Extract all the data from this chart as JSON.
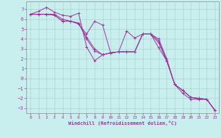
{
  "xlabel": "Windchill (Refroidissement éolien,°C)",
  "bg_color": "#c8eeee",
  "grid_color": "#b0d0d0",
  "line_color": "#993399",
  "xlim": [
    -0.5,
    23.5
  ],
  "ylim": [
    -3.5,
    7.8
  ],
  "yticks": [
    -3,
    -2,
    -1,
    0,
    1,
    2,
    3,
    4,
    5,
    6,
    7
  ],
  "xticks": [
    0,
    1,
    2,
    3,
    4,
    5,
    6,
    7,
    8,
    9,
    10,
    11,
    12,
    13,
    14,
    15,
    16,
    17,
    18,
    19,
    20,
    21,
    22,
    23
  ],
  "series": [
    [
      6.5,
      6.8,
      7.2,
      6.7,
      6.4,
      6.3,
      6.6,
      3.2,
      1.8,
      2.4,
      2.6,
      2.7,
      4.8,
      4.1,
      4.5,
      4.5,
      3.1,
      1.8,
      -0.6,
      -1.2,
      -1.9,
      -2.1,
      -2.1,
      -3.2
    ],
    [
      6.5,
      6.5,
      6.5,
      6.5,
      6.0,
      5.8,
      5.5,
      4.5,
      5.8,
      5.4,
      2.6,
      2.7,
      2.7,
      2.7,
      4.5,
      4.5,
      4.0,
      2.0,
      -0.6,
      -1.5,
      -2.1,
      -2.1,
      -2.1,
      -3.2
    ],
    [
      6.5,
      6.5,
      6.5,
      6.4,
      5.8,
      5.8,
      5.6,
      4.2,
      3.0,
      2.4,
      2.6,
      2.7,
      2.7,
      2.7,
      4.5,
      4.5,
      3.8,
      1.8,
      -0.6,
      -1.2,
      -1.9,
      -2.0,
      -2.1,
      -3.2
    ],
    [
      6.5,
      6.5,
      6.5,
      6.4,
      5.8,
      5.8,
      5.6,
      4.0,
      2.8,
      2.4,
      2.6,
      2.7,
      2.7,
      2.7,
      4.5,
      4.5,
      3.6,
      1.8,
      -0.6,
      -1.2,
      -1.9,
      -2.0,
      -2.1,
      -3.2
    ]
  ],
  "marker": "+"
}
